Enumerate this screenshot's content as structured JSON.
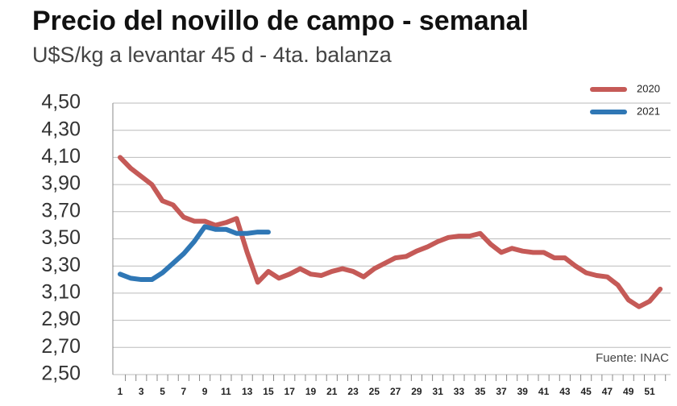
{
  "chart_data": {
    "type": "line",
    "title": "Precio del novillo de campo - semanal",
    "subtitle": "U$S/kg a levantar 45 d - 4ta. balanza",
    "source": "Fuente: INAC",
    "categories": [
      "1",
      null,
      "3",
      null,
      "5",
      null,
      "7",
      null,
      "9",
      null,
      "11",
      null,
      "13",
      null,
      "15",
      null,
      "17",
      null,
      "19",
      null,
      "21",
      null,
      "23",
      null,
      "25",
      null,
      "27",
      null,
      "29",
      null,
      "31",
      null,
      "33",
      null,
      "35",
      null,
      "37",
      null,
      "39",
      null,
      "41",
      null,
      "43",
      null,
      "45",
      null,
      "47",
      null,
      "49",
      null,
      "51",
      null
    ],
    "series": [
      {
        "name": "2020",
        "color": "#c55a57",
        "values": [
          4.1,
          4.02,
          3.96,
          3.9,
          3.78,
          3.75,
          3.66,
          3.63,
          3.63,
          3.6,
          3.62,
          3.65,
          3.4,
          3.18,
          3.26,
          3.21,
          3.24,
          3.28,
          3.24,
          3.23,
          3.26,
          3.28,
          3.26,
          3.22,
          3.28,
          3.32,
          3.36,
          3.37,
          3.41,
          3.44,
          3.48,
          3.51,
          3.52,
          3.52,
          3.54,
          3.46,
          3.4,
          3.43,
          3.41,
          3.4,
          3.4,
          3.36,
          3.36,
          3.3,
          3.25,
          3.23,
          3.22,
          3.16,
          3.05,
          3.0,
          3.04,
          3.13
        ]
      },
      {
        "name": "2021",
        "color": "#2f77b5",
        "values": [
          3.24,
          3.21,
          3.2,
          3.2,
          3.25,
          3.32,
          3.39,
          3.48,
          3.59,
          3.57,
          3.57,
          3.54,
          3.54,
          3.55,
          3.55,
          null,
          null,
          null,
          null,
          null,
          null,
          null,
          null,
          null,
          null,
          null,
          null,
          null,
          null,
          null,
          null,
          null,
          null,
          null,
          null,
          null,
          null,
          null,
          null,
          null,
          null,
          null,
          null,
          null,
          null,
          null,
          null,
          null,
          null,
          null,
          null,
          null
        ]
      }
    ],
    "ylim": [
      2.5,
      4.5
    ],
    "yticks": [
      {
        "value": 2.5,
        "label": "2,50"
      },
      {
        "value": 2.7,
        "label": "2,70"
      },
      {
        "value": 2.9,
        "label": "2,90"
      },
      {
        "value": 3.1,
        "label": "3,10"
      },
      {
        "value": 3.3,
        "label": "3,30"
      },
      {
        "value": 3.5,
        "label": "3,50"
      },
      {
        "value": 3.7,
        "label": "3,70"
      },
      {
        "value": 3.9,
        "label": "3,90"
      },
      {
        "value": 4.1,
        "label": "4,10"
      },
      {
        "value": 4.3,
        "label": "4,30"
      },
      {
        "value": 4.5,
        "label": "4,50"
      }
    ],
    "grid": true
  }
}
